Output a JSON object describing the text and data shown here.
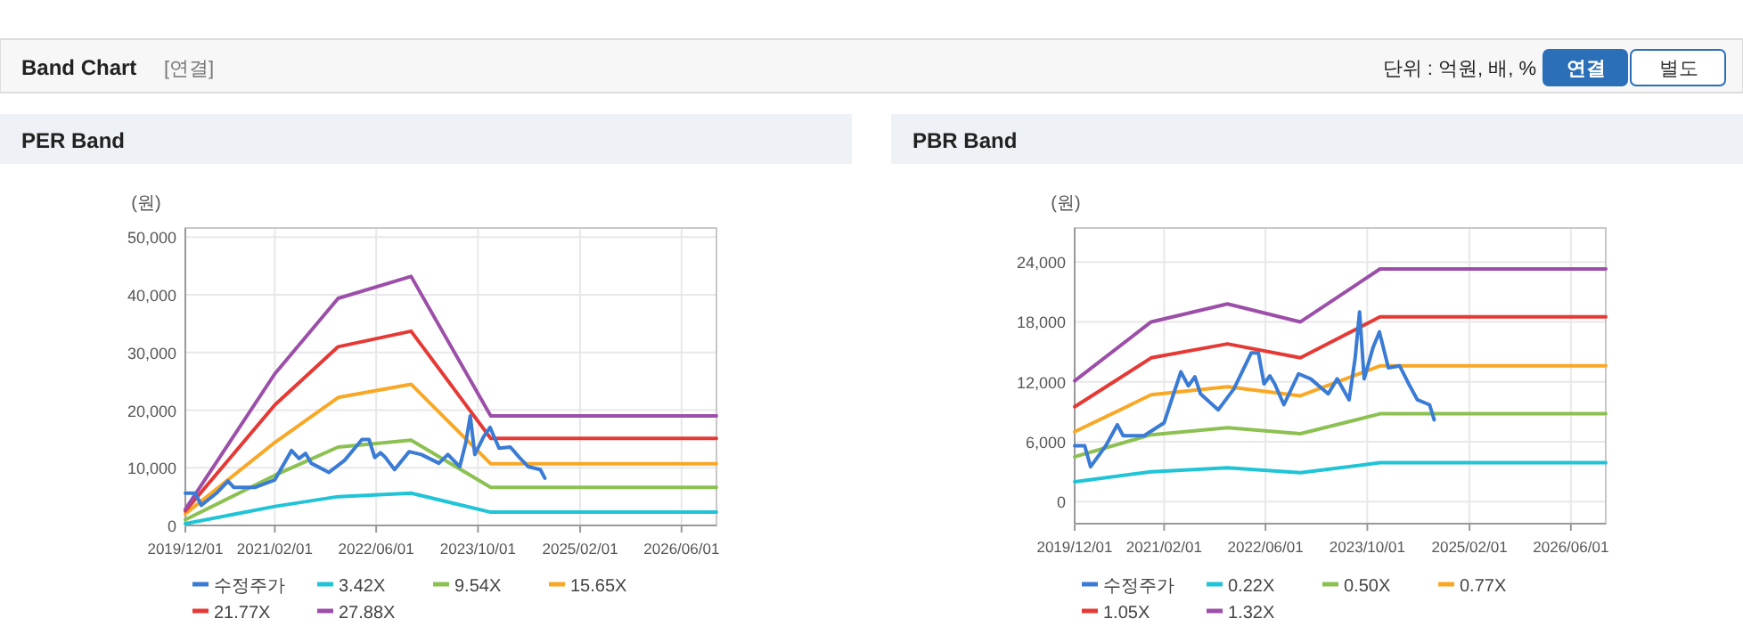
{
  "chart_data": [
    {
      "type": "other",
      "title": "Band Chart",
      "annotations": [
        "[연결]",
        "단위 : 억원, 배, %",
        "연결",
        "별도"
      ]
    },
    {
      "type": "line",
      "title": "PER Band",
      "ylabel": "(원)",
      "legend": "bottom",
      "grid": true,
      "xlim": [
        "2019-12-01",
        "2026-11-15"
      ],
      "xticks": [
        {
          "value": "2019-12-01",
          "label": "2019/12/01"
        },
        {
          "value": "2021-02-01",
          "label": "2021/02/01"
        },
        {
          "value": "2022-06-01",
          "label": "2022/06/01"
        },
        {
          "value": "2023-10-01",
          "label": "2023/10/01"
        },
        {
          "value": "2025-02-01",
          "label": "2025/02/01"
        },
        {
          "value": "2026-06-01",
          "label": "2026/06/01"
        }
      ],
      "ylim": [
        0,
        51600
      ],
      "yticks": [
        0,
        {
          "value": 10000,
          "label": "10,000"
        },
        {
          "value": 20000,
          "label": "20,000"
        },
        {
          "value": 30000,
          "label": "30,000"
        },
        {
          "value": 40000,
          "label": "40,000"
        },
        {
          "value": 50000,
          "label": "50,000"
        }
      ],
      "series": [
        {
          "name": "수정주가",
          "color": "#3a7bd5",
          "x": [
            "2019-12-01",
            "2020-01-18",
            "2020-02-15",
            "2020-04-28",
            "2020-06-22",
            "2020-07-20",
            "2020-10-28",
            "2021-02-01",
            "2021-03-04",
            "2021-04-22",
            "2021-05-28",
            "2021-06-28",
            "2021-07-25",
            "2021-10-18",
            "2022-01-01",
            "2022-03-25",
            "2022-04-28",
            "2022-05-25",
            "2022-06-22",
            "2022-07-15",
            "2022-08-28",
            "2022-11-06",
            "2023-01-03",
            "2023-03-28",
            "2023-05-10",
            "2023-07-06",
            "2023-08-04",
            "2023-08-25",
            "2023-09-16",
            "2023-10-28",
            "2023-11-28",
            "2024-01-10",
            "2024-03-04",
            "2024-04-16",
            "2024-05-28",
            "2024-07-25",
            "2024-08-16"
          ],
          "values": [
            5600,
            5600,
            3500,
            5600,
            7700,
            6600,
            6600,
            7900,
            9900,
            13000,
            11600,
            12500,
            10800,
            9200,
            11300,
            14900,
            14900,
            11800,
            12600,
            11800,
            9700,
            12800,
            12300,
            10800,
            12300,
            10200,
            14400,
            19000,
            12300,
            15400,
            17000,
            13400,
            13600,
            11800,
            10200,
            9700,
            8200
          ]
        },
        {
          "name": "3.42X",
          "color": "#1fc4d6",
          "x": [
            "2019-12-01",
            "2021-02-01",
            "2021-12-01",
            "2022-11-15",
            "2023-12-01",
            "2026-11-15"
          ],
          "values": [
            300,
            3300,
            5000,
            5600,
            2300,
            2300
          ]
        },
        {
          "name": "9.54X",
          "color": "#8cc152",
          "x": [
            "2019-12-01",
            "2021-02-01",
            "2021-12-01",
            "2022-11-15",
            "2023-12-01",
            "2026-11-15"
          ],
          "values": [
            1000,
            8700,
            13600,
            14800,
            6600,
            6600
          ]
        },
        {
          "name": "15.65X",
          "color": "#f9a825",
          "x": [
            "2019-12-01",
            "2021-02-01",
            "2021-12-01",
            "2022-11-15",
            "2023-12-01",
            "2026-11-15"
          ],
          "values": [
            2000,
            14400,
            22200,
            24500,
            10700,
            10700
          ]
        },
        {
          "name": "21.77X",
          "color": "#e53935",
          "x": [
            "2019-12-01",
            "2021-02-01",
            "2021-12-01",
            "2022-11-15",
            "2023-12-01",
            "2026-11-15"
          ],
          "values": [
            2500,
            20900,
            31000,
            33700,
            15100,
            15100
          ]
        },
        {
          "name": "27.88X",
          "color": "#9c4fa8",
          "x": [
            "2019-12-01",
            "2021-02-01",
            "2021-12-01",
            "2022-11-15",
            "2023-12-01",
            "2026-11-15"
          ],
          "values": [
            2800,
            26300,
            39400,
            43200,
            19000,
            19000
          ]
        }
      ]
    },
    {
      "type": "line",
      "title": "PBR Band",
      "ylabel": "(원)",
      "legend": "bottom",
      "grid": true,
      "xlim": [
        "2019-12-01",
        "2026-11-15"
      ],
      "xticks": [
        {
          "value": "2019-12-01",
          "label": "2019/12/01"
        },
        {
          "value": "2021-02-01",
          "label": "2021/02/01"
        },
        {
          "value": "2022-06-01",
          "label": "2022/06/01"
        },
        {
          "value": "2023-10-01",
          "label": "2023/10/01"
        },
        {
          "value": "2025-02-01",
          "label": "2025/02/01"
        },
        {
          "value": "2026-06-01",
          "label": "2026/06/01"
        }
      ],
      "ylim": [
        -2200,
        27400
      ],
      "yticks": [
        0,
        {
          "value": 6000,
          "label": "6,000"
        },
        {
          "value": 12000,
          "label": "12,000"
        },
        {
          "value": 18000,
          "label": "18,000"
        },
        {
          "value": 24000,
          "label": "24,000"
        }
      ],
      "series": [
        {
          "name": "수정주가",
          "color": "#3a7bd5",
          "x": [
            "2019-12-01",
            "2020-01-18",
            "2020-02-15",
            "2020-04-28",
            "2020-06-22",
            "2020-07-20",
            "2020-10-28",
            "2021-02-01",
            "2021-03-04",
            "2021-04-22",
            "2021-05-28",
            "2021-06-28",
            "2021-07-25",
            "2021-10-18",
            "2022-01-01",
            "2022-03-25",
            "2022-04-28",
            "2022-05-25",
            "2022-06-22",
            "2022-07-15",
            "2022-08-28",
            "2022-11-06",
            "2023-01-03",
            "2023-03-28",
            "2023-05-10",
            "2023-07-06",
            "2023-08-04",
            "2023-08-25",
            "2023-09-16",
            "2023-10-28",
            "2023-11-28",
            "2024-01-10",
            "2024-03-04",
            "2024-04-16",
            "2024-05-28",
            "2024-07-25",
            "2024-08-16"
          ],
          "values": [
            5600,
            5600,
            3500,
            5600,
            7700,
            6600,
            6600,
            7900,
            9900,
            13000,
            11600,
            12500,
            10800,
            9200,
            11300,
            14900,
            14900,
            11800,
            12600,
            11800,
            9700,
            12800,
            12300,
            10800,
            12300,
            10200,
            14400,
            19000,
            12300,
            15400,
            17000,
            13400,
            13600,
            11800,
            10200,
            9700,
            8200
          ]
        },
        {
          "name": "0.22X",
          "color": "#1fc4d6",
          "x": [
            "2019-12-01",
            "2020-12-01",
            "2021-12-01",
            "2022-11-15",
            "2023-12-01",
            "2026-11-15"
          ],
          "values": [
            2000,
            3000,
            3400,
            2900,
            3900,
            3900
          ]
        },
        {
          "name": "0.50X",
          "color": "#8cc152",
          "x": [
            "2019-12-01",
            "2020-12-01",
            "2021-12-01",
            "2022-11-15",
            "2023-12-01",
            "2026-11-15"
          ],
          "values": [
            4500,
            6700,
            7400,
            6800,
            8800,
            8800
          ]
        },
        {
          "name": "0.77X",
          "color": "#f9a825",
          "x": [
            "2019-12-01",
            "2020-12-01",
            "2021-12-01",
            "2022-11-15",
            "2023-12-01",
            "2026-11-15"
          ],
          "values": [
            7000,
            10700,
            11500,
            10600,
            13600,
            13600
          ]
        },
        {
          "name": "1.05X",
          "color": "#e53935",
          "x": [
            "2019-12-01",
            "2020-12-01",
            "2021-12-01",
            "2022-11-15",
            "2023-12-01",
            "2026-11-15"
          ],
          "values": [
            9500,
            14400,
            15800,
            14400,
            18500,
            18500
          ]
        },
        {
          "name": "1.32X",
          "color": "#9c4fa8",
          "x": [
            "2019-12-01",
            "2020-12-01",
            "2021-12-01",
            "2022-11-15",
            "2023-12-01",
            "2026-11-15"
          ],
          "values": [
            12100,
            18000,
            19800,
            18000,
            23300,
            23300
          ]
        }
      ]
    }
  ]
}
